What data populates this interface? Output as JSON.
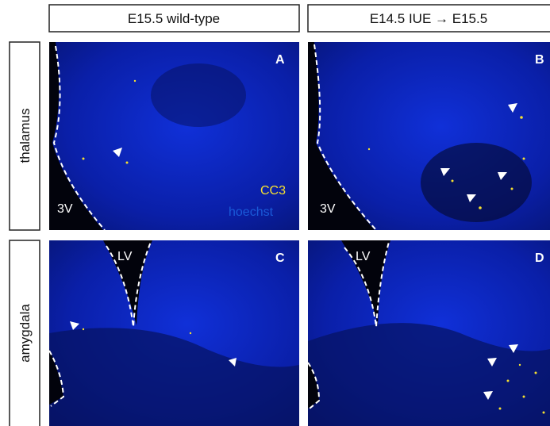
{
  "columns": [
    "E15.5 wild-type",
    "E14.5 IUE → E15.5"
  ],
  "rows": [
    "thalamus",
    "amygdala"
  ],
  "panels": [
    {
      "letter": "A",
      "region": "3V"
    },
    {
      "letter": "B",
      "region": "3V"
    },
    {
      "letter": "C",
      "region": "LV"
    },
    {
      "letter": "D",
      "region": "LV"
    }
  ],
  "legend": [
    "CC3",
    "hoechst"
  ]
}
